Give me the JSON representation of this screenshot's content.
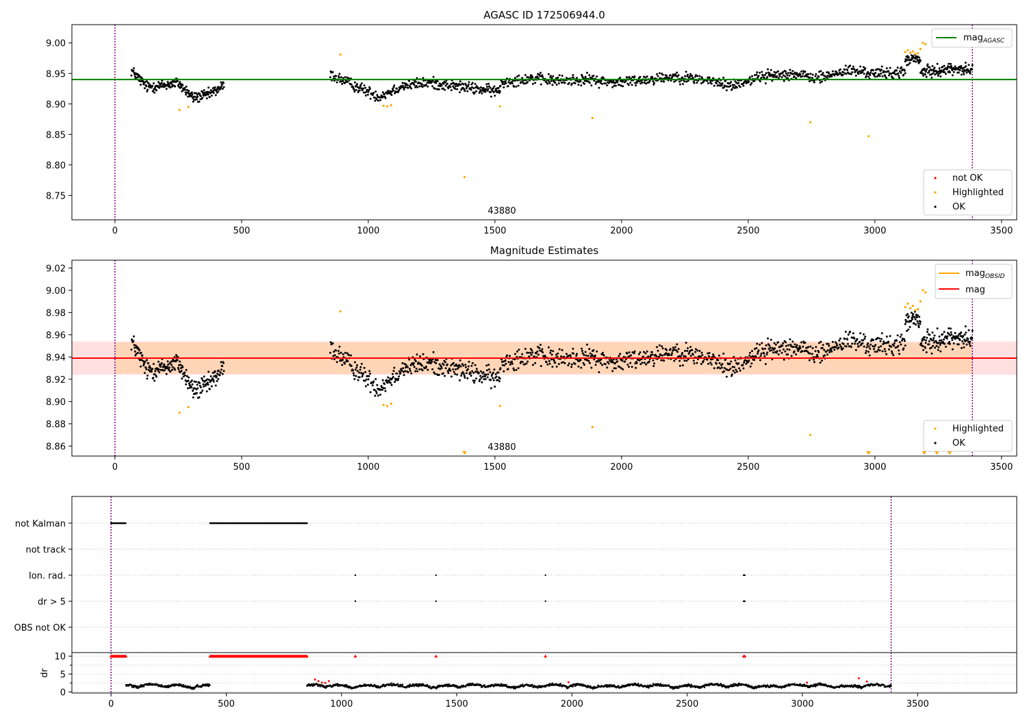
{
  "chart_data": [
    {
      "type": "scatter",
      "title": "AGASC ID 172506944.0",
      "xlim": [
        -170,
        3560
      ],
      "ylim": [
        8.71,
        9.03
      ],
      "x_ticks": [
        0,
        500,
        1000,
        1500,
        2000,
        2500,
        3000,
        3500
      ],
      "x_tick_labels": [
        "0",
        "500",
        "1000",
        "1500",
        "2000",
        "2500",
        "3000",
        "3500"
      ],
      "y_ticks": [
        8.75,
        8.8,
        8.85,
        8.9,
        8.95,
        9.0
      ],
      "y_tick_labels": [
        "8.75",
        "8.80",
        "8.85",
        "8.90",
        "8.95",
        "9.00"
      ],
      "obsid_boundaries": [
        0,
        3385
      ],
      "obsid_label": "43880",
      "obsid_label_x": 1690,
      "mag_agasc": 8.94,
      "line_legend": {
        "base": "mag",
        "subscript": "AGASC"
      },
      "scatter_legend": [
        "not OK",
        "Highlighted",
        "OK"
      ],
      "ok_segments": [
        {
          "x0": 65,
          "x1": 430,
          "n": 230,
          "y": [
            8.955,
            8.928,
            8.93,
            8.935,
            8.91,
            8.915,
            8.93
          ]
        },
        {
          "x0": 850,
          "x1": 1520,
          "n": 330,
          "y": [
            8.948,
            8.93,
            8.912,
            8.93,
            8.935,
            8.93,
            8.925,
            8.92
          ]
        },
        {
          "x0": 1520,
          "x1": 3120,
          "n": 750,
          "y": [
            8.935,
            8.942,
            8.938,
            8.94,
            8.935,
            8.94,
            8.945,
            8.94,
            8.93,
            8.945,
            8.95,
            8.942,
            8.955,
            8.95,
            8.952
          ]
        },
        {
          "x0": 3120,
          "x1": 3180,
          "n": 40,
          "y": [
            8.972,
            8.975,
            8.97
          ]
        },
        {
          "x0": 3180,
          "x1": 3385,
          "n": 130,
          "y": [
            8.952,
            8.955,
            8.958,
            8.955
          ]
        }
      ],
      "highlighted_points": [
        [
          255,
          8.89
        ],
        [
          290,
          8.895
        ],
        [
          890,
          8.981
        ],
        [
          1060,
          8.897
        ],
        [
          1075,
          8.896
        ],
        [
          1090,
          8.898
        ],
        [
          1380,
          8.78
        ],
        [
          1520,
          8.896
        ],
        [
          1885,
          8.877
        ],
        [
          2745,
          8.87
        ],
        [
          2975,
          8.847
        ],
        [
          3120,
          8.985
        ],
        [
          3130,
          8.988
        ],
        [
          3140,
          8.984
        ],
        [
          3150,
          8.986
        ],
        [
          3160,
          8.982
        ],
        [
          3170,
          8.983
        ],
        [
          3180,
          8.99
        ],
        [
          3190,
          9.0
        ],
        [
          3200,
          8.998
        ],
        [
          3195,
          8.788
        ],
        [
          3245,
          8.78
        ],
        [
          3295,
          8.741
        ]
      ]
    },
    {
      "type": "scatter",
      "title": "Magnitude Estimates",
      "xlim": [
        -170,
        3560
      ],
      "ylim": [
        8.851,
        9.027
      ],
      "x_ticks": [
        0,
        500,
        1000,
        1500,
        2000,
        2500,
        3000,
        3500
      ],
      "x_tick_labels": [
        "0",
        "500",
        "1000",
        "1500",
        "2000",
        "2500",
        "3000",
        "3500"
      ],
      "y_ticks": [
        8.86,
        8.88,
        8.9,
        8.92,
        8.94,
        8.96,
        8.98,
        9.0,
        9.02
      ],
      "y_tick_labels": [
        "8.86",
        "8.88",
        "8.90",
        "8.92",
        "8.94",
        "8.96",
        "8.98",
        "9.00",
        "9.02"
      ],
      "obsid_label": "43880",
      "obsid_label_x": 1690,
      "mag": 8.939,
      "mag_band": [
        8.924,
        8.954
      ],
      "mag_obsid": 8.939,
      "obsid_band": [
        8.925,
        8.953
      ],
      "line_legend": [
        {
          "base": "mag",
          "subscript": "OBSID"
        },
        {
          "base": "mag",
          "subscript": ""
        }
      ],
      "scatter_legend": [
        "Highlighted",
        "OK"
      ],
      "off_scale_markers_x": [
        1380,
        2975,
        3195,
        3245,
        3295
      ]
    },
    {
      "type": "scatter",
      "xlim": [
        -170,
        3930
      ],
      "x_ticks": [
        0,
        500,
        1000,
        1500,
        2000,
        2500,
        3000,
        3500
      ],
      "x_tick_labels": [
        "0",
        "500",
        "1000",
        "1500",
        "2000",
        "2500",
        "3000",
        "3500"
      ],
      "flag_rows": [
        "not Kalman",
        "not track",
        "Ion. rad.",
        "dr > 5",
        "OBS not OK"
      ],
      "not_kalman_ranges": [
        [
          0,
          65
        ],
        [
          430,
          850
        ]
      ],
      "ion_rad_x": [
        1060,
        1410,
        1885,
        2745,
        2750
      ],
      "dr_gt5_x": [
        1060,
        1410,
        1885,
        2745,
        2750
      ],
      "obs_not_ok_x": [],
      "dr_ylabel": "dr",
      "dr_ylim": [
        -0.3,
        11
      ],
      "dr_ticks": [
        0,
        5,
        10
      ],
      "dr_tick_labels": [
        "0",
        "5",
        "10"
      ],
      "dr_clipped_value": 10,
      "dr_clipped_ranges": [
        [
          0,
          65
        ],
        [
          430,
          850
        ]
      ],
      "dr_clipped_points_x": [
        1060,
        1410,
        1885,
        2745,
        2750
      ],
      "dr_red_points": [
        [
          885,
          3.5
        ],
        [
          900,
          3.0
        ],
        [
          915,
          2.6
        ],
        [
          930,
          2.5
        ],
        [
          945,
          3.0
        ],
        [
          1985,
          2.7
        ],
        [
          3020,
          2.6
        ],
        [
          3245,
          3.8
        ],
        [
          3280,
          2.9
        ]
      ]
    }
  ]
}
